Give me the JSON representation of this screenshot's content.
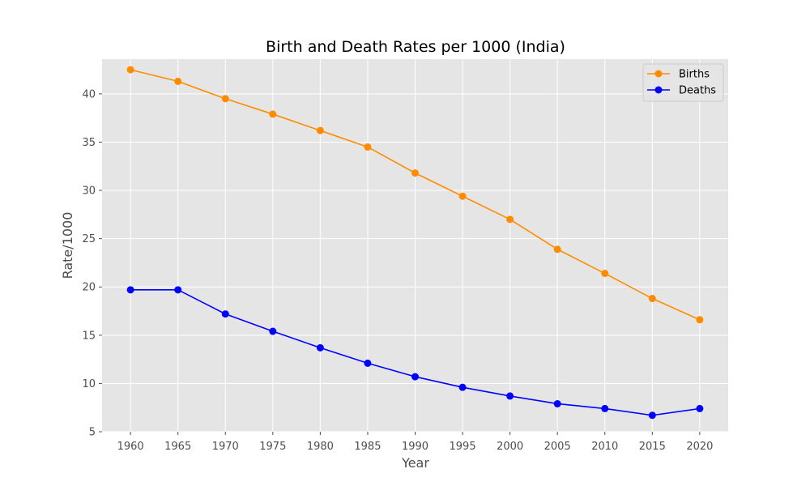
{
  "chart_data": {
    "type": "line",
    "title": "Birth and Death Rates per 1000 (India)",
    "xlabel": "Year",
    "ylabel": "Rate/1000",
    "x": [
      1960,
      1965,
      1970,
      1975,
      1980,
      1985,
      1990,
      1995,
      2000,
      2005,
      2010,
      2015,
      2020
    ],
    "xlim": [
      1957,
      2023
    ],
    "ylim": [
      5,
      43.6
    ],
    "yticks": [
      5,
      10,
      15,
      20,
      25,
      30,
      35,
      40
    ],
    "grid": true,
    "legend_position": "top-right",
    "series": [
      {
        "name": "Births",
        "color": "#ff8c00",
        "marker": "circle",
        "values": [
          42.5,
          41.3,
          39.5,
          37.9,
          36.2,
          34.5,
          31.8,
          29.4,
          27.0,
          23.9,
          21.4,
          18.8,
          16.6
        ]
      },
      {
        "name": "Deaths",
        "color": "#0000ff",
        "marker": "circle",
        "values": [
          19.7,
          19.7,
          17.2,
          15.4,
          13.7,
          12.1,
          10.7,
          9.6,
          8.7,
          7.9,
          7.4,
          6.7,
          7.4
        ]
      }
    ]
  },
  "style": {
    "plot_background": "#e5e5e5",
    "grid_color": "#ffffff",
    "tick_color": "#4d4d4d"
  }
}
